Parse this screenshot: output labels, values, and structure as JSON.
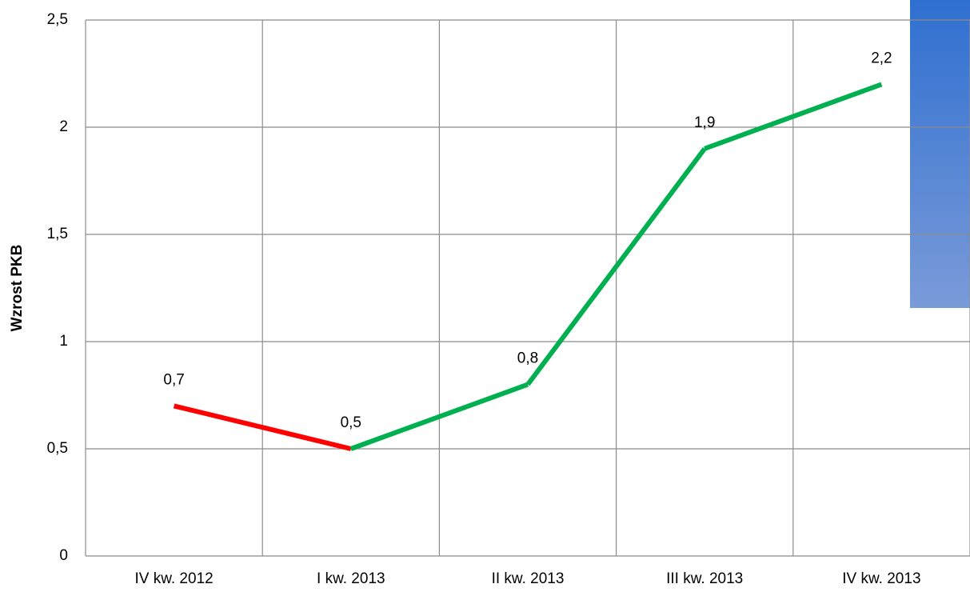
{
  "chart_data": {
    "type": "line",
    "y_label": "Wzrost PKB",
    "categories": [
      "IV kw. 2012",
      "I kw. 2013",
      "II kw. 2013",
      "III kw. 2013",
      "IV kw. 2013"
    ],
    "series": [
      {
        "values": [
          0.7,
          0.5,
          0.8,
          1.9,
          2.2
        ],
        "value_labels": [
          "0,7",
          "0,5",
          "0,8",
          "1,9",
          "2,2"
        ],
        "segment_colors": [
          "#ff0000",
          "#00b050",
          "#00b050",
          "#00b050"
        ]
      }
    ],
    "ylim": [
      0,
      2.5
    ],
    "yticks": [
      0,
      {
        "value": 0.5,
        "label": "0,5"
      },
      1,
      {
        "value": 1.5,
        "label": "1,5"
      },
      2,
      {
        "value": 2.5,
        "label": "2,5"
      }
    ],
    "grid": true
  }
}
